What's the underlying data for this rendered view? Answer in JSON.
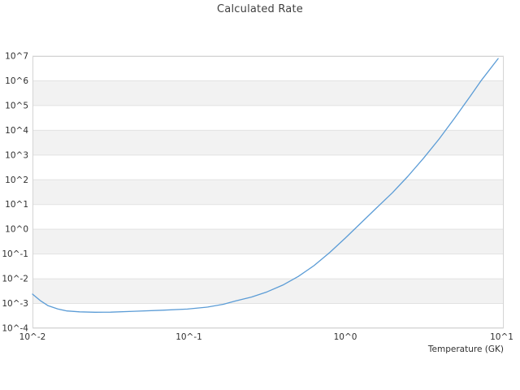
{
  "title": "Calculated Rate",
  "chart_data": {
    "type": "line",
    "title": "Calculated Rate",
    "xlabel": "Temperature (GK)",
    "ylabel": "",
    "x_scale": "log",
    "y_scale": "log",
    "xlim": [
      0.01,
      10.3
    ],
    "ylim": [
      0.0001,
      10000000
    ],
    "x_ticks": [
      "10^-2",
      "10^-1",
      "10^0",
      "10^1"
    ],
    "y_ticks": [
      "10^7",
      "10^6",
      "10^5",
      "10^4",
      "10^3",
      "10^2",
      "10^1",
      "10^0",
      "10^-1",
      "10^-2",
      "10^-3",
      "10^-4"
    ],
    "grid": "horizontal-bands",
    "legend": "none",
    "colors": {
      "line": "#5b9cd6",
      "band": "#f2f2f2",
      "gridline": "#e2e2e2",
      "border": "#d4d4d4",
      "tick_text": "#303030",
      "title_text": "#3f3f3f"
    },
    "series": [
      {
        "name": "calculated-rate",
        "x": [
          0.01,
          0.0112,
          0.0126,
          0.0145,
          0.0166,
          0.02,
          0.0251,
          0.0316,
          0.0447,
          0.0676,
          0.0977,
          0.132,
          0.166,
          0.2,
          0.251,
          0.316,
          0.398,
          0.501,
          0.631,
          0.794,
          1.0,
          1.26,
          1.58,
          2.0,
          2.51,
          3.16,
          3.98,
          5.01,
          6.31,
          7.41,
          9.48
        ],
        "y": [
          0.0024,
          0.00132,
          0.00081,
          0.0006,
          0.0005,
          0.00046,
          0.000442,
          0.000447,
          0.000484,
          0.000537,
          0.000596,
          0.00072,
          0.00093,
          0.00129,
          0.00182,
          0.00295,
          0.00556,
          0.0124,
          0.0339,
          0.114,
          0.442,
          1.8,
          7.24,
          29.9,
          138,
          741,
          4470,
          31600,
          245000,
          1050000,
          7900000
        ]
      }
    ]
  }
}
